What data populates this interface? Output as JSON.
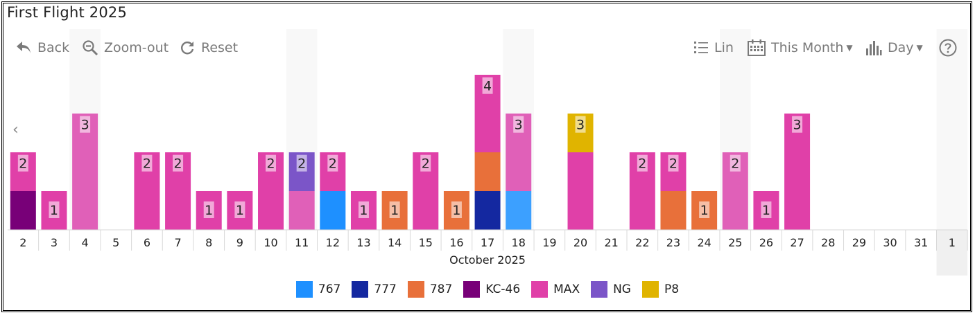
{
  "title": "First Flight 2025",
  "toolbar": {
    "back_label": "Back",
    "zoom_out_label": "Zoom-out",
    "reset_label": "Reset",
    "scale_label": "Lin",
    "period_label": "This Month",
    "granularity_label": "Day"
  },
  "icons": {
    "back": "back-arrow-icon",
    "zoom_out": "zoom-out-icon",
    "reset": "reset-icon",
    "scale": "list-icon",
    "period": "calendar-icon",
    "granularity": "bar-chart-icon",
    "help": "help-icon",
    "prev": "chevron-left-icon"
  },
  "prev_glyph": "‹",
  "chart_data": {
    "type": "bar",
    "stacked": true,
    "xlabel": "October 2025",
    "ylabel": "",
    "ylim": [
      0,
      4
    ],
    "grid": false,
    "legend_position": "bottom",
    "categories": [
      "2",
      "3",
      "4",
      "5",
      "6",
      "7",
      "8",
      "9",
      "10",
      "11",
      "12",
      "13",
      "14",
      "15",
      "16",
      "17",
      "18",
      "19",
      "20",
      "21",
      "22",
      "23",
      "24",
      "25",
      "26",
      "27",
      "28",
      "29",
      "30",
      "31",
      "1"
    ],
    "highlighted_categories": [
      "4",
      "11",
      "18",
      "25",
      "1"
    ],
    "series": [
      {
        "name": "767",
        "color": "#1e90ff",
        "values": [
          0,
          0,
          0,
          0,
          0,
          0,
          0,
          0,
          0,
          0,
          1,
          0,
          0,
          0,
          0,
          0,
          1,
          0,
          0,
          0,
          0,
          0,
          0,
          0,
          0,
          0,
          0,
          0,
          0,
          0,
          0
        ]
      },
      {
        "name": "777",
        "color": "#1428a0",
        "values": [
          0,
          0,
          0,
          0,
          0,
          0,
          0,
          0,
          0,
          0,
          0,
          0,
          0,
          0,
          0,
          1,
          0,
          0,
          0,
          0,
          0,
          0,
          0,
          0,
          0,
          0,
          0,
          0,
          0,
          0,
          0
        ]
      },
      {
        "name": "787",
        "color": "#e8703a",
        "values": [
          0,
          0,
          0,
          0,
          0,
          0,
          0,
          0,
          0,
          0,
          0,
          0,
          1,
          0,
          1,
          1,
          0,
          0,
          0,
          0,
          0,
          1,
          1,
          0,
          0,
          0,
          0,
          0,
          0,
          0,
          0
        ]
      },
      {
        "name": "KC-46",
        "color": "#780078",
        "values": [
          1,
          0,
          0,
          0,
          0,
          0,
          0,
          0,
          0,
          0,
          0,
          0,
          0,
          0,
          0,
          0,
          0,
          0,
          0,
          0,
          0,
          0,
          0,
          0,
          0,
          0,
          0,
          0,
          0,
          0,
          0
        ]
      },
      {
        "name": "MAX",
        "color": "#e040a8",
        "values": [
          1,
          1,
          3,
          0,
          2,
          2,
          1,
          1,
          2,
          1,
          1,
          1,
          0,
          2,
          0,
          2,
          2,
          0,
          2,
          0,
          2,
          1,
          0,
          2,
          1,
          3,
          0,
          0,
          0,
          0,
          0
        ]
      },
      {
        "name": "NG",
        "color": "#7b55c8",
        "values": [
          0,
          0,
          0,
          0,
          0,
          0,
          0,
          0,
          0,
          1,
          0,
          0,
          0,
          0,
          0,
          0,
          0,
          0,
          0,
          0,
          0,
          0,
          0,
          0,
          0,
          0,
          0,
          0,
          0,
          0,
          0
        ]
      },
      {
        "name": "P8",
        "color": "#e0b400",
        "values": [
          0,
          0,
          0,
          0,
          0,
          0,
          0,
          0,
          0,
          0,
          0,
          0,
          0,
          0,
          0,
          0,
          0,
          0,
          1,
          0,
          0,
          0,
          0,
          0,
          0,
          0,
          0,
          0,
          0,
          0,
          0
        ]
      }
    ],
    "totals": [
      2,
      1,
      3,
      0,
      2,
      2,
      1,
      1,
      2,
      2,
      2,
      1,
      1,
      2,
      1,
      4,
      3,
      0,
      3,
      0,
      2,
      2,
      1,
      2,
      1,
      3,
      0,
      0,
      0,
      0,
      0
    ]
  }
}
